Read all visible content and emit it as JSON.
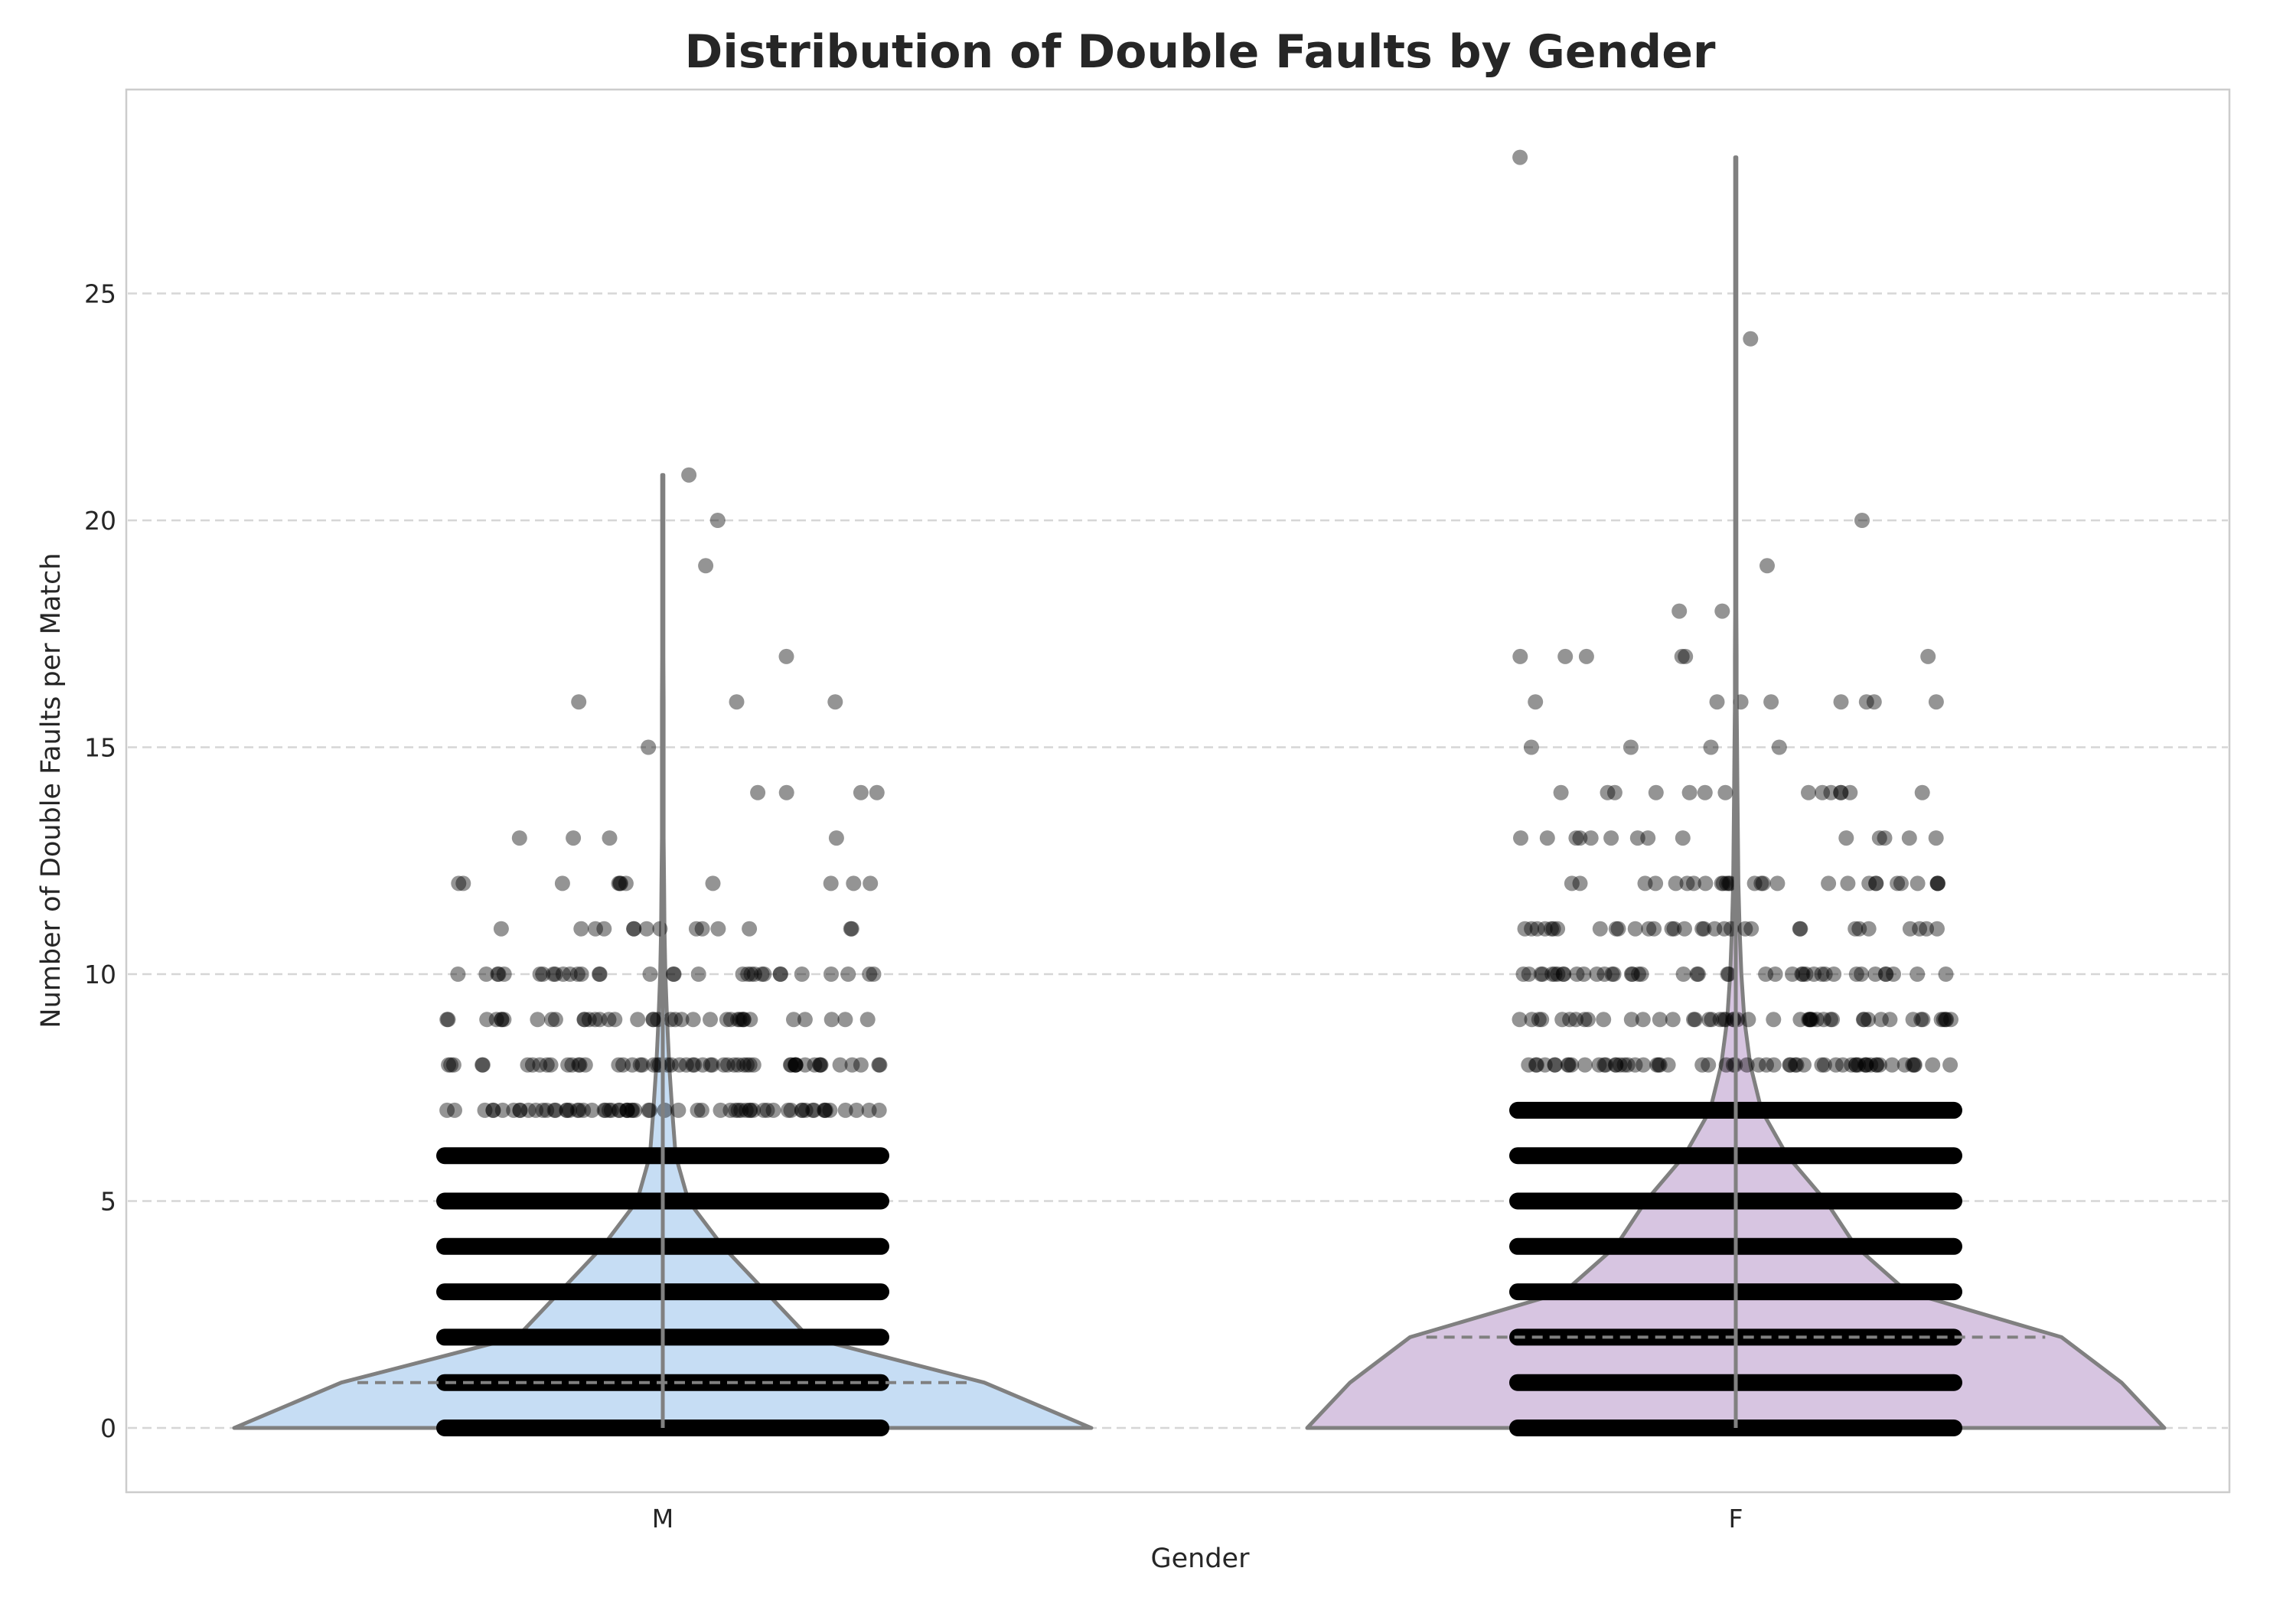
{
  "chart_data": {
    "type": "violin",
    "title": "Distribution of Double Faults by Gender",
    "xlabel": "Gender",
    "ylabel": "Number of Double Faults per Match",
    "categories": [
      "M",
      "F"
    ],
    "ylim": [
      -1.4,
      29.5
    ],
    "yticks": [
      0,
      5,
      10,
      15,
      20,
      25
    ],
    "grid": "y, dashed",
    "quartile_lines": {
      "M": 1,
      "F": 2
    },
    "whisker_max": {
      "M": 21,
      "F": 28
    },
    "density": {
      "y": [
        0,
        1,
        2,
        3,
        4,
        5,
        6,
        7,
        8,
        9,
        10,
        11,
        12,
        13,
        14,
        15,
        16,
        17,
        18,
        19,
        20,
        21,
        22,
        23,
        24,
        25,
        26,
        27,
        28
      ],
      "M": [
        1.0,
        0.75,
        0.34,
        0.24,
        0.14,
        0.06,
        0.03,
        0.022,
        0.015,
        0.01,
        0.006,
        0.004,
        0.003,
        0.002,
        0.002,
        0.002,
        0.002,
        0.001,
        0.001,
        0.001,
        0.001,
        0.0007,
        0,
        0,
        0,
        0,
        0,
        0,
        0
      ],
      "F": [
        1.0,
        0.9,
        0.76,
        0.4,
        0.28,
        0.21,
        0.12,
        0.06,
        0.034,
        0.02,
        0.013,
        0.009,
        0.006,
        0.005,
        0.004,
        0.003,
        0.002,
        0.002,
        0.0015,
        0.0012,
        0.001,
        0.001,
        0.0008,
        0.0008,
        0.0007,
        0.0006,
        0.0005,
        0.0005,
        0.0004
      ]
    },
    "points": {
      "M": {
        "dense_levels": [
          0,
          1,
          2,
          3,
          4,
          5,
          6
        ],
        "sparse": [
          [
            7,
            0.95
          ],
          [
            8,
            0.8
          ],
          [
            9,
            0.55
          ],
          [
            10,
            0.45
          ],
          [
            11,
            0.2
          ],
          [
            12,
            0.16
          ],
          [
            13,
            0.05
          ],
          [
            14,
            0.06
          ],
          [
            15,
            0.02
          ],
          [
            16,
            0.04
          ],
          [
            17,
            0.01
          ],
          [
            19,
            0.01
          ],
          [
            20,
            0.02
          ],
          [
            21,
            0.01
          ]
        ]
      },
      "F": {
        "dense_levels": [
          0,
          1,
          2,
          3,
          4,
          5,
          6,
          7
        ],
        "sparse": [
          [
            8,
            0.85
          ],
          [
            9,
            0.7
          ],
          [
            10,
            0.6
          ],
          [
            11,
            0.45
          ],
          [
            12,
            0.4
          ],
          [
            13,
            0.2
          ],
          [
            14,
            0.2
          ],
          [
            15,
            0.06
          ],
          [
            16,
            0.12
          ],
          [
            17,
            0.08
          ],
          [
            18,
            0.03
          ],
          [
            19,
            0.02
          ],
          [
            20,
            0.02
          ],
          [
            24,
            0.01
          ],
          [
            28,
            0.01
          ]
        ]
      }
    },
    "colors": {
      "M": "#c6ddf4",
      "F": "#d7c5e1",
      "outline": "#808080",
      "points": "#000000",
      "grid": "#d6d6d6"
    }
  }
}
